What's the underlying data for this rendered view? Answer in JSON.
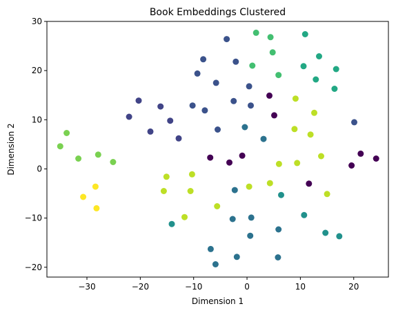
{
  "chart_data": {
    "type": "scatter",
    "title": "Book Embeddings Clustered",
    "xlabel": "Dimension 1",
    "ylabel": "Dimension 2",
    "xlim": [
      -37.5,
      26.5
    ],
    "ylim": [
      -22,
      30
    ],
    "xticks": [
      -30,
      -20,
      -10,
      0,
      10,
      20
    ],
    "yticks": [
      -20,
      -10,
      0,
      10,
      20,
      30
    ],
    "xtick_labels": [
      "−30",
      "−20",
      "−10",
      "0",
      "10",
      "20"
    ],
    "ytick_labels": [
      "−20",
      "−10",
      "0",
      "10",
      "20",
      "30"
    ],
    "grid": false,
    "colormap": "viridis",
    "points": [
      {
        "x": -35.0,
        "y": 4.6,
        "color": "#7ad151"
      },
      {
        "x": -33.8,
        "y": 7.3,
        "color": "#7ad151"
      },
      {
        "x": -31.6,
        "y": 2.1,
        "color": "#7ad151"
      },
      {
        "x": -27.9,
        "y": 2.9,
        "color": "#7ad151"
      },
      {
        "x": -25.1,
        "y": 1.4,
        "color": "#7ad151"
      },
      {
        "x": -30.7,
        "y": -5.7,
        "color": "#fde725"
      },
      {
        "x": -28.4,
        "y": -3.6,
        "color": "#fde725"
      },
      {
        "x": -28.2,
        "y": -8.0,
        "color": "#fde725"
      },
      {
        "x": -22.1,
        "y": 10.6,
        "color": "#414487"
      },
      {
        "x": -20.3,
        "y": 13.9,
        "color": "#414487"
      },
      {
        "x": -18.1,
        "y": 7.6,
        "color": "#414487"
      },
      {
        "x": -16.2,
        "y": 12.7,
        "color": "#414487"
      },
      {
        "x": -14.4,
        "y": 9.8,
        "color": "#414487"
      },
      {
        "x": -12.8,
        "y": 6.2,
        "color": "#414487"
      },
      {
        "x": -10.2,
        "y": 12.9,
        "color": "#3b528b"
      },
      {
        "x": -7.9,
        "y": 11.9,
        "color": "#3b528b"
      },
      {
        "x": -5.5,
        "y": 8.0,
        "color": "#3b528b"
      },
      {
        "x": -2.5,
        "y": 13.8,
        "color": "#3b528b"
      },
      {
        "x": 0.7,
        "y": 12.9,
        "color": "#3b528b"
      },
      {
        "x": -9.3,
        "y": 19.4,
        "color": "#3b528b"
      },
      {
        "x": -8.2,
        "y": 22.3,
        "color": "#3b528b"
      },
      {
        "x": -5.8,
        "y": 17.5,
        "color": "#3b528b"
      },
      {
        "x": -3.8,
        "y": 26.4,
        "color": "#3b528b"
      },
      {
        "x": -2.1,
        "y": 21.8,
        "color": "#3b528b"
      },
      {
        "x": 0.4,
        "y": 16.8,
        "color": "#3b528b"
      },
      {
        "x": 20.1,
        "y": 9.5,
        "color": "#3b528b"
      },
      {
        "x": -0.4,
        "y": 8.5,
        "color": "#2c728e"
      },
      {
        "x": 3.1,
        "y": 6.1,
        "color": "#2c728e"
      },
      {
        "x": 1.7,
        "y": 27.7,
        "color": "#43bf71"
      },
      {
        "x": 4.4,
        "y": 26.8,
        "color": "#43bf71"
      },
      {
        "x": 4.8,
        "y": 23.7,
        "color": "#43bf71"
      },
      {
        "x": 10.9,
        "y": 27.4,
        "color": "#22a884"
      },
      {
        "x": 1.0,
        "y": 21.0,
        "color": "#43bf71"
      },
      {
        "x": 5.9,
        "y": 19.1,
        "color": "#43bf71"
      },
      {
        "x": 10.6,
        "y": 20.9,
        "color": "#22a884"
      },
      {
        "x": 13.5,
        "y": 22.9,
        "color": "#22a884"
      },
      {
        "x": 12.9,
        "y": 18.2,
        "color": "#22a884"
      },
      {
        "x": 16.7,
        "y": 20.3,
        "color": "#22a884"
      },
      {
        "x": 16.4,
        "y": 16.3,
        "color": "#22a884"
      },
      {
        "x": 4.2,
        "y": 14.9,
        "color": "#440154"
      },
      {
        "x": 5.1,
        "y": 10.9,
        "color": "#440154"
      },
      {
        "x": -6.9,
        "y": 2.3,
        "color": "#440154"
      },
      {
        "x": -3.3,
        "y": 1.3,
        "color": "#440154"
      },
      {
        "x": -0.9,
        "y": 2.7,
        "color": "#440154"
      },
      {
        "x": 11.6,
        "y": -3.0,
        "color": "#440154"
      },
      {
        "x": 19.6,
        "y": 0.7,
        "color": "#440154"
      },
      {
        "x": 21.3,
        "y": 3.1,
        "color": "#440154"
      },
      {
        "x": 24.2,
        "y": 2.1,
        "color": "#440154"
      },
      {
        "x": 9.1,
        "y": 14.3,
        "color": "#bddf26"
      },
      {
        "x": 12.6,
        "y": 11.4,
        "color": "#bddf26"
      },
      {
        "x": 8.9,
        "y": 8.1,
        "color": "#bddf26"
      },
      {
        "x": 11.9,
        "y": 7.0,
        "color": "#bddf26"
      },
      {
        "x": 6.0,
        "y": 1.0,
        "color": "#bddf26"
      },
      {
        "x": 9.4,
        "y": 1.2,
        "color": "#bddf26"
      },
      {
        "x": 13.9,
        "y": 2.6,
        "color": "#bddf26"
      },
      {
        "x": 4.3,
        "y": -2.9,
        "color": "#bddf26"
      },
      {
        "x": 0.4,
        "y": -3.6,
        "color": "#bddf26"
      },
      {
        "x": 15.0,
        "y": -5.1,
        "color": "#bddf26"
      },
      {
        "x": -15.1,
        "y": -1.6,
        "color": "#bddf26"
      },
      {
        "x": -10.3,
        "y": -1.1,
        "color": "#bddf26"
      },
      {
        "x": -15.6,
        "y": -4.5,
        "color": "#bddf26"
      },
      {
        "x": -10.6,
        "y": -4.5,
        "color": "#bddf26"
      },
      {
        "x": -5.6,
        "y": -7.6,
        "color": "#bddf26"
      },
      {
        "x": -11.7,
        "y": -9.8,
        "color": "#bddf26"
      },
      {
        "x": -2.3,
        "y": -4.3,
        "color": "#2c728e"
      },
      {
        "x": 6.4,
        "y": -5.3,
        "color": "#21918c"
      },
      {
        "x": -14.1,
        "y": -11.2,
        "color": "#21918c"
      },
      {
        "x": -2.7,
        "y": -10.2,
        "color": "#2c728e"
      },
      {
        "x": 0.8,
        "y": -9.9,
        "color": "#2c728e"
      },
      {
        "x": 10.7,
        "y": -9.4,
        "color": "#21918c"
      },
      {
        "x": 5.9,
        "y": -12.3,
        "color": "#2c728e"
      },
      {
        "x": 0.6,
        "y": -13.6,
        "color": "#2c728e"
      },
      {
        "x": 14.7,
        "y": -13.0,
        "color": "#21918c"
      },
      {
        "x": 17.3,
        "y": -13.7,
        "color": "#21918c"
      },
      {
        "x": -6.8,
        "y": -16.3,
        "color": "#2c728e"
      },
      {
        "x": -1.9,
        "y": -17.9,
        "color": "#2c728e"
      },
      {
        "x": 5.8,
        "y": -18.0,
        "color": "#2c728e"
      },
      {
        "x": -5.9,
        "y": -19.4,
        "color": "#2c728e"
      }
    ]
  }
}
